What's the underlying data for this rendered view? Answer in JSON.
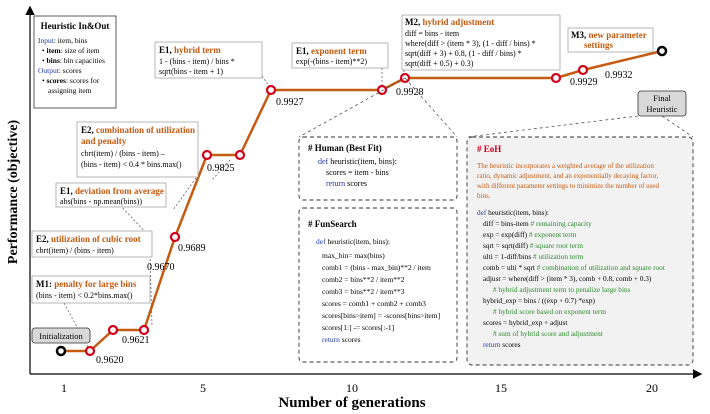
{
  "axes": {
    "ylabel": "Performance (objective)",
    "xlabel": "Number of generations",
    "xticks": [
      "1",
      "5",
      "10",
      "15",
      "20"
    ]
  },
  "colors": {
    "line": "#c55a11",
    "marker": "#d0021b",
    "accent": "#c55a11",
    "keyword": "#1f3aa8",
    "comment": "#2d8a2d"
  },
  "nodes": {
    "values": [
      "0.9620",
      "0.9621",
      "0.9670",
      "0.9689",
      "0.9825",
      "0.9927",
      "0.9928",
      "0.9929",
      "0.9932"
    ]
  },
  "chart_data": {
    "type": "line",
    "xlabel": "Number of generations",
    "ylabel": "Performance (objective)",
    "x_ticks": [
      1,
      5,
      10,
      15,
      20
    ],
    "points": [
      {
        "x": 1,
        "y": 0.962,
        "label": "Initialization"
      },
      {
        "x": 2,
        "y": 0.962
      },
      {
        "x": 3,
        "y": 0.9621
      },
      {
        "x": 4,
        "y": 0.9621
      },
      {
        "x": 5,
        "y": 0.967
      },
      {
        "x": 6,
        "y": 0.9689
      },
      {
        "x": 7,
        "y": 0.9825
      },
      {
        "x": 8,
        "y": 0.9927
      },
      {
        "x": 12,
        "y": 0.9927
      },
      {
        "x": 13,
        "y": 0.9928
      },
      {
        "x": 18,
        "y": 0.9928
      },
      {
        "x": 19,
        "y": 0.9929
      },
      {
        "x": 20,
        "y": 0.9932,
        "label": "Final Heuristic"
      }
    ]
  },
  "heuristic_box": {
    "title": "Heuristic In&Out",
    "input_label": "Input",
    "input_text": ": item, bins",
    "items": [
      {
        "bold": "item",
        "rest": ": size of item"
      },
      {
        "bold": "bins",
        "rest": ": bin capacities"
      }
    ],
    "output_label": "Output",
    "output_text": ": scores",
    "out_items": [
      {
        "bold": "scores",
        "rest": ": scores for"
      }
    ],
    "out_cont": "assigning item"
  },
  "annotations": {
    "m1": {
      "head": "M1:",
      "title": "penalty for large bins",
      "lines": [
        "(bins - item) < 0.2*bins.max()"
      ]
    },
    "e2a": {
      "head": "E2,",
      "title": "utilization of cubic root",
      "lines": [
        "cbrt(item) / (bins - item)"
      ]
    },
    "e1a": {
      "head": "E1,",
      "title": "deviation from average",
      "lines": [
        "abs(bins - np.mean(bins))"
      ]
    },
    "e2b": {
      "head": "E2,",
      "title1": "combination of utilization",
      "title2": "and penalty",
      "lines": [
        "cbrt(item) / (bins - item) –",
        "(bins - item) < 0.4 * bins.max()"
      ]
    },
    "e1b": {
      "head": "E1,",
      "title": "hybrid term",
      "lines": [
        "1  -  (bins  -  item)  /  bins  *",
        "sqrt(bins - item + 1)"
      ]
    },
    "e1c": {
      "head": "E1,",
      "title": "exponent term",
      "lines": [
        "exp(-(bins - item)**2)"
      ]
    },
    "m2": {
      "head": "M2,",
      "title": "hybrid adjustment",
      "lines": [
        "diff = bins - item",
        "where(diff > (item * 3), (1 - diff / bins) *",
        "sqrt(diff  +  3)  +  0.8,  (1  -  diff / bins)  *",
        "sqrt(diff + 0.5) + 0.3)"
      ]
    },
    "m3": {
      "head": "M3,",
      "title1": "new  parameter",
      "title2": "settings"
    }
  },
  "labels": {
    "init": "Initialization",
    "final1": "Final",
    "final2": "Heuristic"
  },
  "human": {
    "title": "# Human (Best Fit)",
    "l1a": "def",
    "l1b": " heuristic(item, bins):",
    "l2": "scores = item - bins",
    "l3a": "return",
    "l3b": " scores"
  },
  "funsearch": {
    "title": "# FunSearch",
    "l1a": "def",
    "l1b": " heuristic(item, bins):",
    "l2": "max_bin= max(bins)",
    "l3": "comb1 = (bins - max_bin)**2 / item",
    "l4": "comb2 = bins**2 / item**2",
    "l5": "comb3 = bins**2 / item**3",
    "l6": "scores = comb1 + comb2 + comb3",
    "l7": "scores[bins>item] = -scores[bins>item]",
    "l8": "scores[1:] -= scores[:-1]",
    "l9a": "return",
    "l9b": " scores"
  },
  "eoh": {
    "title": "# EoH",
    "desc": [
      "The heuristic incorporates a weighted average of the utilization",
      "ratio, dynamic adjustment, and an exponentially decaying factor,",
      "with different parameter settings to minimize the number of used",
      "bins."
    ],
    "def_kw": "def",
    "def_rest": " heuristic(item, bins):",
    "c1": "diff = bins-item",
    "c1c": " # remaining capacity",
    "c2": "exp = exp(diff)",
    "c2c": "  # exponent term",
    "c3": "sqrt = sqrt(diff)",
    "c3c": "  # square root term",
    "c4": "ulti = 1-diff/bins",
    "c4c": "  # utilization term",
    "c5": "comb = ulti * sqrt",
    "c5c": "  # combination of utilization and square root",
    "c6": "adjust = where(diff > (item * 3), comb + 0.8, comb + 0.3)",
    "c6c": "# hybrid adjustment term to penalize large bins",
    "c7": "hybrid_exp = bins / ((exp + 0.7) *exp)",
    "c7c": "# hybrid score based on exponent term",
    "c8": "scores = hybrid_exp + adjust",
    "c8c": "# sum of hybrid score and adjustment",
    "ret_kw": "return",
    "ret_rest": " scores"
  }
}
